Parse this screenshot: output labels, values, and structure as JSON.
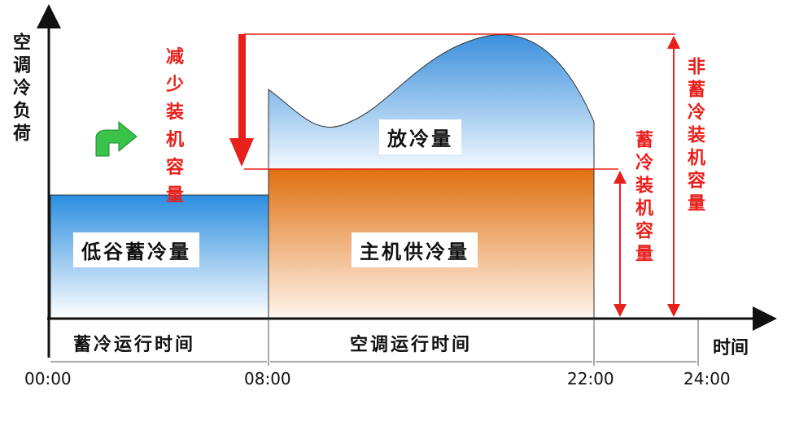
{
  "y_axis_label": "空调冷负荷",
  "x_axis_label": "时间",
  "annotations": {
    "reduce": "减少装机容量",
    "non_storage": "非蓄冷装机容量",
    "storage": "蓄冷装机容量"
  },
  "areas": {
    "release": "放冷量",
    "valley_storage": "低谷蓄冷量",
    "chiller_supply": "主机供冷量"
  },
  "periods": {
    "storage_time": "蓄冷运行时间",
    "ac_time": "空调运行时间"
  },
  "times": [
    "00:00",
    "08:00",
    "22:00",
    "24:00"
  ]
}
